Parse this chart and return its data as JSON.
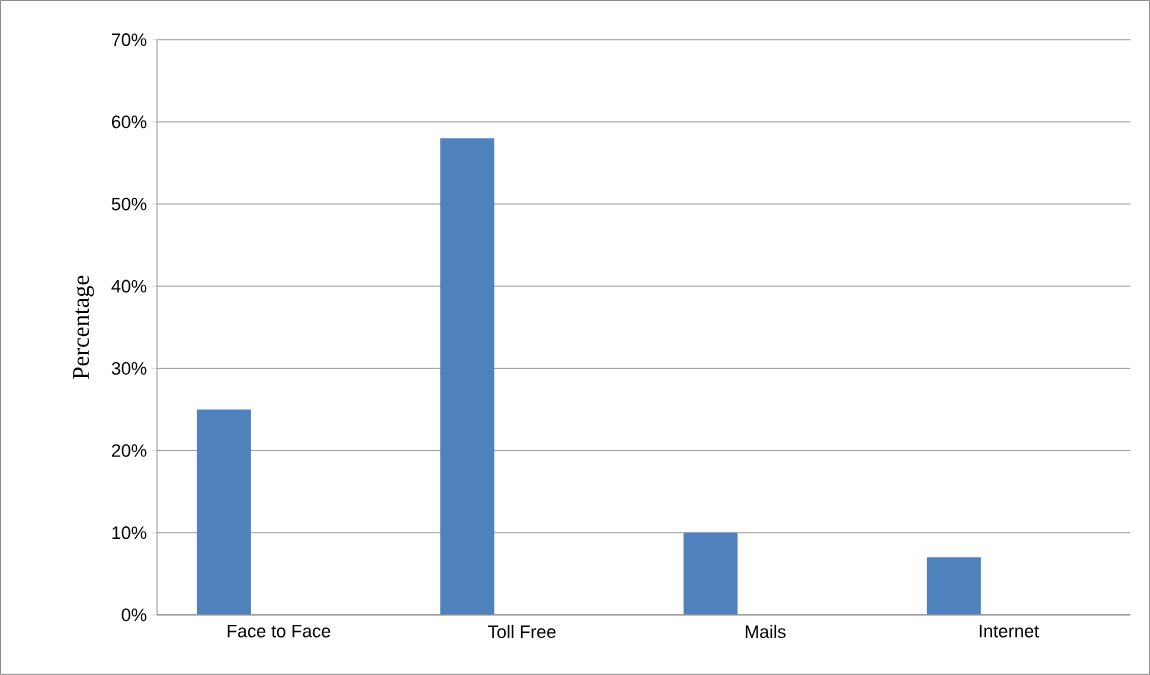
{
  "chart_data": {
    "type": "bar",
    "ylabel": "Percentage",
    "categories": [
      "Face to Face",
      "Toll Free",
      "Mails",
      "Internet"
    ],
    "values": [
      25,
      58,
      10,
      7
    ],
    "color": "#4f81bd",
    "ylim": [
      0,
      70
    ],
    "yticks": [
      {
        "value": 0,
        "label": "0%"
      },
      {
        "value": 10,
        "label": "10%"
      },
      {
        "value": 20,
        "label": "20%"
      },
      {
        "value": 30,
        "label": "30%"
      },
      {
        "value": 40,
        "label": "40%"
      },
      {
        "value": 50,
        "label": "50%"
      },
      {
        "value": 60,
        "label": "60%"
      },
      {
        "value": 70,
        "label": "70%"
      }
    ],
    "grid": "y"
  }
}
